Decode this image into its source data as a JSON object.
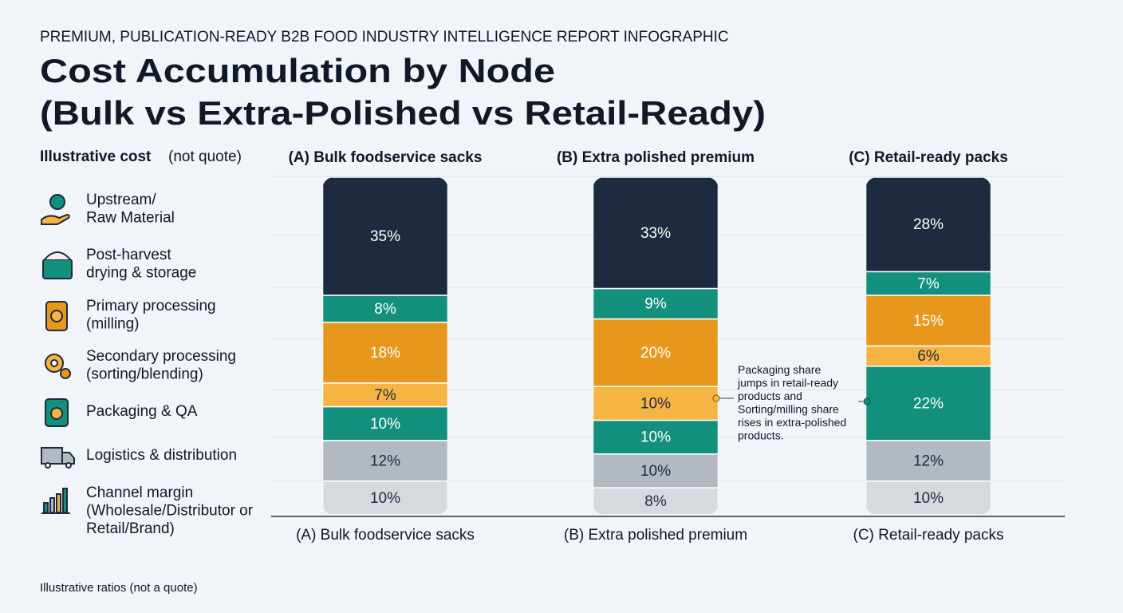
{
  "chart_data": {
    "type": "stacked_bar",
    "header": "PREMIUM, PUBLICATION-READY B2B FOOD INDUSTRY INTELLIGENCE REPORT INFOGRAPHIC",
    "title": [
      "Cost Accumulation by Node",
      "(Bulk vs Extra-Polished vs Retail-Ready)"
    ],
    "legend_title": "Illustrative cost",
    "legend_subtitle": "(not quote)",
    "categories": [
      "(A) Bulk foodservice sacks",
      "(B) Extra polished premium",
      "(C) Retail-ready packs"
    ],
    "ylim": [
      0,
      100
    ],
    "series": [
      {
        "name": "Upstream/\nRaw Material",
        "color": "#1d2a3f",
        "values": [
          35,
          33,
          28
        ],
        "value_labels": [
          "35%",
          "33%",
          "28%"
        ]
      },
      {
        "name": "Post-harvest\ndrying & storage",
        "color": "#138f7d",
        "values": [
          8,
          9,
          7
        ],
        "value_labels": [
          "8%",
          "9%",
          "7%"
        ]
      },
      {
        "name": "Primary processing\n(milling)",
        "color": "#e7981c",
        "values": [
          18,
          20,
          15
        ],
        "value_labels": [
          "18%",
          "20%",
          "15%"
        ]
      },
      {
        "name": "Secondary processing\n(sorting/blending)",
        "color": "#f6b443",
        "values": [
          7,
          10,
          6
        ],
        "value_labels": [
          "7%",
          "10%",
          "6%"
        ]
      },
      {
        "name": "Packaging & QA",
        "color": "#138f7d",
        "values": [
          10,
          10,
          22
        ],
        "value_labels": [
          "10%",
          "10%",
          "22%"
        ]
      },
      {
        "name": "Logistics & distribution",
        "color": "#b2b9c1",
        "values": [
          12,
          10,
          12
        ],
        "value_labels": [
          "12%",
          "10%",
          "12%"
        ]
      },
      {
        "name": "Channel margin\n(Wholesale/Distributor or\nRetail/Brand)",
        "color": "#d6dadf",
        "values": [
          10,
          8,
          10
        ],
        "value_labels": [
          "10%",
          "8%",
          "10%"
        ]
      }
    ],
    "annotation": "Packaging share\njumps in retail-ready\nproducts and\nSorting/milling share\nrises in extra-polished\nproducts.",
    "footnote": "Illustrative ratios (not a quote)"
  }
}
